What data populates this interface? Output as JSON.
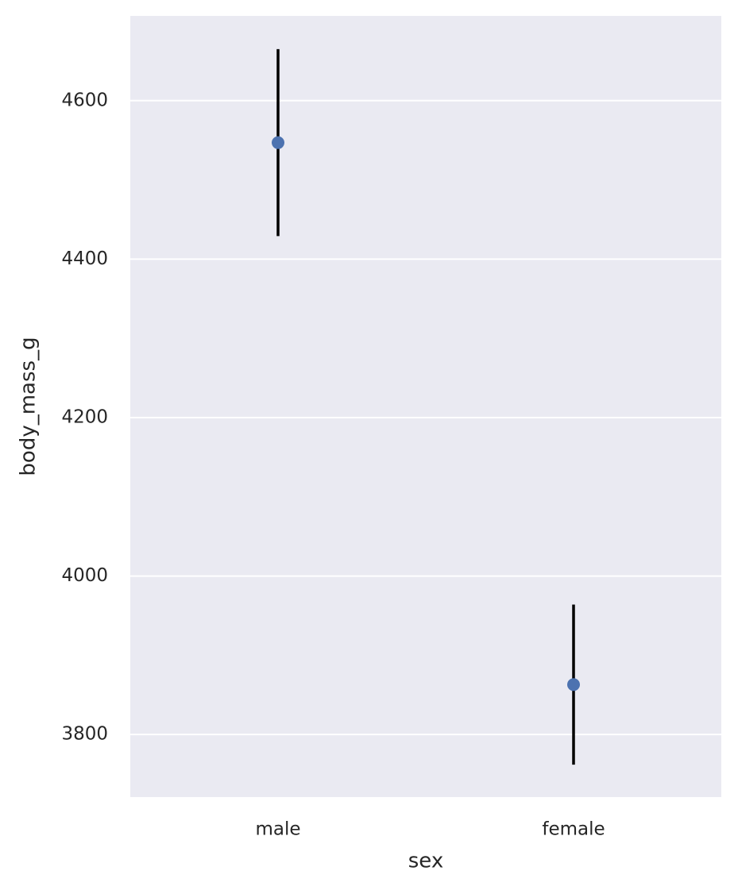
{
  "chart_data": {
    "type": "pointplot",
    "x_label": "sex",
    "y_label": "body_mass_g",
    "categories": [
      "male",
      "female"
    ],
    "values": [
      4547,
      3863
    ],
    "ci_low": [
      4429,
      3762
    ],
    "ci_high": [
      4665,
      3964
    ],
    "color": "#4c72b0",
    "errorbar_color": "#000000",
    "ylim": [
      3721,
      4707
    ],
    "yticks": [
      3800,
      4000,
      4200,
      4400,
      4600
    ],
    "grid": true
  }
}
